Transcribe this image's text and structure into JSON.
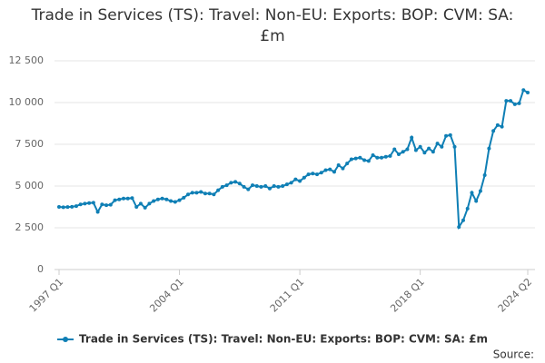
{
  "chart_data": {
    "type": "line",
    "title": "Trade in Services (TS): Travel: Non-EU: Exports: BOP: CVM: SA: £m",
    "source": "Source:",
    "categories": [
      "1997 Q1",
      null,
      null,
      null,
      null,
      null,
      null,
      null,
      null,
      null,
      null,
      null,
      null,
      null,
      null,
      null,
      null,
      null,
      null,
      null,
      null,
      null,
      null,
      null,
      null,
      null,
      null,
      null,
      "2004 Q1",
      null,
      null,
      null,
      null,
      null,
      null,
      null,
      null,
      null,
      null,
      null,
      null,
      null,
      null,
      null,
      null,
      null,
      null,
      null,
      null,
      null,
      null,
      null,
      null,
      null,
      null,
      null,
      "2011 Q1",
      null,
      null,
      null,
      null,
      null,
      null,
      null,
      null,
      null,
      null,
      null,
      null,
      null,
      null,
      null,
      null,
      null,
      null,
      null,
      null,
      null,
      null,
      null,
      null,
      null,
      null,
      null,
      "2018 Q1",
      null,
      null,
      null,
      null,
      null,
      null,
      null,
      null,
      null,
      null,
      null,
      null,
      null,
      null,
      null,
      null,
      null,
      null,
      null,
      null,
      null,
      null,
      null,
      null,
      "2024 Q2"
    ],
    "series": [
      {
        "name": "Trade in Services (TS): Travel: Non-EU: Exports: BOP: CVM: SA: £m",
        "color": "#0f7fb5",
        "values": [
          3750,
          3730,
          3740,
          3760,
          3800,
          3900,
          3950,
          3980,
          4000,
          3450,
          3900,
          3850,
          3880,
          4150,
          4200,
          4250,
          4250,
          4280,
          3750,
          3950,
          3700,
          3950,
          4100,
          4200,
          4250,
          4200,
          4100,
          4050,
          4150,
          4300,
          4500,
          4600,
          4600,
          4650,
          4550,
          4550,
          4500,
          4750,
          4950,
          5050,
          5200,
          5250,
          5150,
          4950,
          4800,
          5050,
          5000,
          4950,
          5000,
          4850,
          5000,
          4950,
          5000,
          5100,
          5200,
          5400,
          5300,
          5500,
          5700,
          5750,
          5700,
          5800,
          5950,
          6000,
          5850,
          6250,
          6050,
          6350,
          6600,
          6650,
          6700,
          6550,
          6500,
          6850,
          6700,
          6700,
          6750,
          6800,
          7200,
          6900,
          7050,
          7200,
          7900,
          7150,
          7350,
          7000,
          7250,
          7050,
          7550,
          7350,
          8000,
          8050,
          7350,
          2550,
          2950,
          3650,
          4600,
          4100,
          4700,
          5650,
          7250,
          8300,
          8650,
          8550,
          10100,
          10100,
          9900,
          9950,
          10750,
          10600
        ]
      }
    ],
    "ylim": [
      0,
      12500
    ],
    "yticks": [
      0,
      {
        "value": 2500,
        "label": "2 500"
      },
      {
        "value": 5000,
        "label": "5 000"
      },
      {
        "value": 7500,
        "label": "7 500"
      },
      {
        "value": 10000,
        "label": "10 000"
      },
      {
        "value": 12500,
        "label": "12 500"
      }
    ],
    "grid": true
  }
}
